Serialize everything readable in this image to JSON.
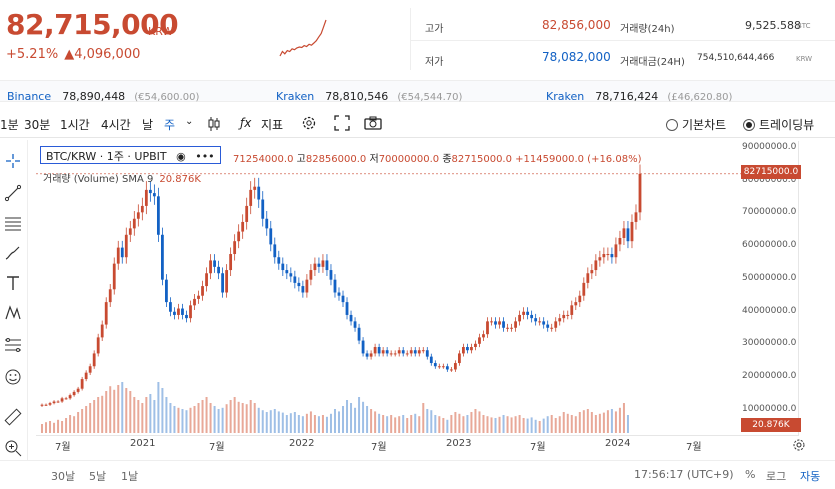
{
  "ticker": {
    "price": "82,715,000",
    "unit": "KRW",
    "change_pct": "+5.21%",
    "change_arrow": "▲",
    "change_abs": "4,096,000",
    "high_label": "고가",
    "high_value": "82,856,000",
    "low_label": "저가",
    "low_value": "78,082,000",
    "volume_label": "거래량(24h)",
    "volume_value": "9,525.588",
    "volume_unit": "BTC",
    "amount_label": "거래대금(24H)",
    "amount_value": "754,510,644,466",
    "amount_unit": "KRW",
    "sparkline": [
      1,
      2,
      1.5,
      2.2,
      2,
      2.6,
      2.4,
      2.8,
      3,
      2.9,
      3.3,
      3.1,
      3.6,
      3.4,
      3.9,
      4.4,
      5.2,
      6,
      7.5,
      9
    ]
  },
  "exchanges": [
    {
      "name": "Binance",
      "price": "78,890,448",
      "sub": "(€54,600.00)"
    },
    {
      "name": "Kraken",
      "price": "78,810,546",
      "sub": "(€54,544.70)"
    },
    {
      "name": "Kraken",
      "price": "78,716,424",
      "sub": "(£46,620.80)"
    }
  ],
  "toolbar": {
    "intervals": [
      "1분",
      "30분",
      "1시간",
      "4시간",
      "날",
      "주"
    ],
    "active_interval": "주",
    "indicator_label": "지표",
    "view_basic": "기본차트",
    "view_tradingview": "트레이딩뷰"
  },
  "legend": {
    "symbol": "BTC/KRW · 1주 · UPBIT",
    "open_label": "",
    "open": "71254000.0",
    "high_label": "고",
    "high": "82856000.0",
    "low_label": "저",
    "low": "70000000.0",
    "close_label": "종",
    "close": "82715000.0",
    "change": "+11459000.0 (+16.08%)",
    "volume_title": "거래량 (Volume)",
    "volume_sma": "SMA 9",
    "volume_value": "20.876K"
  },
  "y_axis": [
    "90000000.0",
    "80000000.0",
    "70000000.0",
    "60000000.0",
    "50000000.0",
    "40000000.0",
    "30000000.0",
    "20000000.0",
    "10000000.0"
  ],
  "price_tag": "82715000.0",
  "volume_tag": "20.876K",
  "x_axis": [
    "7월",
    "2021",
    "7월",
    "2022",
    "7월",
    "2023",
    "7월",
    "2024",
    "7월"
  ],
  "bottom": {
    "ranges": [
      "30날",
      "5날",
      "1날"
    ],
    "time": "17:56:17 (UTC+9)",
    "pct": "%",
    "log": "로그",
    "auto": "자동"
  },
  "chart_data": {
    "type": "candlestick",
    "title": "BTC/KRW · 1주 · UPBIT",
    "ylim": [
      0,
      92000000
    ],
    "x_labels": [
      "7월",
      "2021",
      "7월",
      "2022",
      "7월",
      "2023",
      "7월",
      "2024",
      "7월"
    ],
    "close_series_millions": [
      11,
      11,
      11.5,
      12,
      12,
      13,
      13,
      14,
      15,
      16,
      19,
      21,
      23,
      27,
      32,
      36,
      43,
      47,
      55,
      60,
      57,
      64,
      66,
      69,
      71,
      73,
      78,
      77,
      76,
      64,
      50,
      43,
      40,
      39,
      41,
      39,
      38,
      42,
      44,
      45,
      48,
      52,
      56,
      54,
      52,
      46,
      53,
      58,
      62,
      65,
      68,
      73,
      78,
      79,
      75,
      69,
      66,
      61,
      57,
      55,
      53,
      52,
      51,
      49,
      48,
      46,
      50,
      53,
      55,
      54,
      56,
      53,
      50,
      46,
      45,
      43,
      39,
      37,
      35,
      31,
      27,
      26,
      27,
      29,
      27,
      28,
      27,
      27,
      27,
      28,
      27,
      27,
      28,
      27,
      28,
      28,
      26,
      24,
      23,
      23,
      23,
      22,
      22,
      24,
      27,
      29,
      28,
      29,
      30,
      32,
      33,
      37,
      37,
      36,
      37,
      35,
      35,
      35,
      37,
      39,
      40,
      39,
      38,
      37,
      37,
      36,
      35,
      35,
      37,
      38,
      39,
      39,
      42,
      43,
      45,
      49,
      52,
      53,
      56,
      57,
      58,
      58,
      57,
      61,
      63,
      66,
      62,
      68,
      71,
      83
    ],
    "volume_relative": [
      0.15,
      0.18,
      0.2,
      0.17,
      0.22,
      0.2,
      0.25,
      0.3,
      0.28,
      0.35,
      0.4,
      0.45,
      0.5,
      0.55,
      0.6,
      0.62,
      0.7,
      0.78,
      0.72,
      0.8,
      0.85,
      0.75,
      0.7,
      0.6,
      0.55,
      0.5,
      0.6,
      0.65,
      0.55,
      0.85,
      0.75,
      0.6,
      0.5,
      0.45,
      0.42,
      0.4,
      0.38,
      0.42,
      0.45,
      0.5,
      0.55,
      0.6,
      0.5,
      0.45,
      0.4,
      0.42,
      0.48,
      0.55,
      0.6,
      0.52,
      0.5,
      0.48,
      0.55,
      0.5,
      0.42,
      0.38,
      0.35,
      0.38,
      0.4,
      0.36,
      0.34,
      0.3,
      0.33,
      0.35,
      0.3,
      0.28,
      0.32,
      0.36,
      0.3,
      0.28,
      0.3,
      0.27,
      0.32,
      0.4,
      0.36,
      0.45,
      0.55,
      0.5,
      0.42,
      0.6,
      0.52,
      0.45,
      0.4,
      0.36,
      0.32,
      0.3,
      0.28,
      0.3,
      0.26,
      0.28,
      0.3,
      0.25,
      0.3,
      0.32,
      0.28,
      0.5,
      0.4,
      0.38,
      0.3,
      0.28,
      0.25,
      0.22,
      0.3,
      0.35,
      0.32,
      0.28,
      0.3,
      0.35,
      0.4,
      0.36,
      0.3,
      0.28,
      0.26,
      0.25,
      0.27,
      0.3,
      0.28,
      0.26,
      0.28,
      0.3,
      0.25,
      0.24,
      0.26,
      0.22,
      0.2,
      0.24,
      0.28,
      0.3,
      0.25,
      0.28,
      0.35,
      0.32,
      0.3,
      0.28,
      0.35,
      0.38,
      0.4,
      0.35,
      0.3,
      0.32,
      0.34,
      0.38,
      0.4,
      0.36,
      0.42,
      0.5,
      0.3
    ]
  }
}
